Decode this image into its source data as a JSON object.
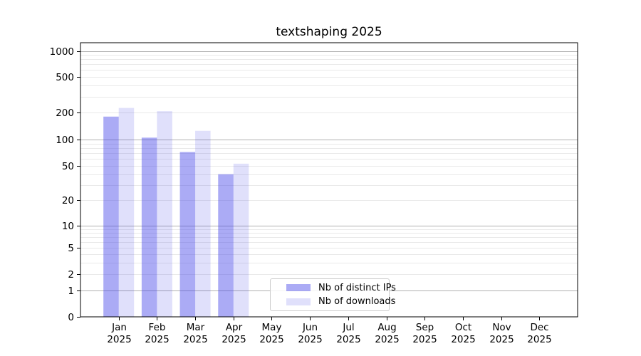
{
  "title": "textshaping 2025",
  "chart_data": {
    "type": "bar",
    "title": "textshaping 2025",
    "x_categories": [
      "Jan 2025",
      "Feb 2025",
      "Mar 2025",
      "Apr 2025",
      "May 2025",
      "Jun 2025",
      "Jul 2025",
      "Aug 2025",
      "Sep 2025",
      "Oct 2025",
      "Nov 2025",
      "Dec 2025"
    ],
    "series": [
      {
        "name": "Nb of distinct IPs",
        "values": [
          180,
          105,
          72,
          40,
          0,
          0,
          0,
          0,
          0,
          0,
          0,
          0
        ],
        "color": "#4040e8",
        "fill_opacity": 0.44
      },
      {
        "name": "Nb of downloads",
        "values": [
          225,
          207,
          125,
          53,
          0,
          0,
          0,
          0,
          0,
          0,
          0,
          0
        ],
        "color": "#4040e8",
        "fill_opacity": 0.16
      }
    ],
    "ylabel": "",
    "xlabel": "",
    "yscale": "log-like",
    "ytick_values": [
      0,
      1,
      2,
      5,
      10,
      20,
      50,
      100,
      200,
      500,
      1000
    ],
    "ytick_labels": [
      "0",
      "1",
      "2",
      "5",
      "10",
      "20",
      "50",
      "100",
      "200",
      "500",
      "1000"
    ],
    "ylim_top": 1250,
    "grid": "horizontal major + minor",
    "legend_position": "inside lower-center"
  },
  "legend": {
    "items": [
      {
        "label": "Nb of distinct IPs"
      },
      {
        "label": "Nb of downloads"
      }
    ]
  },
  "colors": {
    "bar_base": "#4040e8",
    "grid_major": "#b0b0b0",
    "grid_minor": "#e9e9e9",
    "spine": "#000000",
    "text": "#000000",
    "legend_border": "#cccccc",
    "background": "#ffffff"
  }
}
